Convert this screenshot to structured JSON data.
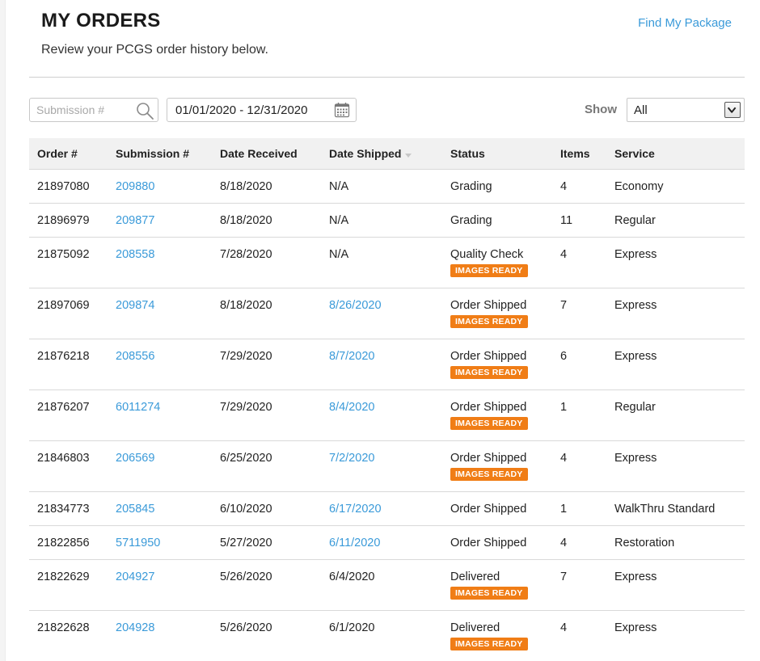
{
  "header": {
    "title": "MY ORDERS",
    "subtitle": "Review your PCGS order history below.",
    "find_package": "Find My Package"
  },
  "filters": {
    "search_placeholder": "Submission #",
    "date_range": "01/01/2020 - 12/31/2020",
    "show_label": "Show",
    "show_value": "All"
  },
  "table": {
    "columns": [
      "Order #",
      "Submission #",
      "Date Received",
      "Date Shipped",
      "Status",
      "Items",
      "Service"
    ],
    "badge_label": "IMAGES READY",
    "rows": [
      {
        "order": "21897080",
        "submission": "209880",
        "received": "8/18/2020",
        "shipped": "N/A",
        "status": "Grading",
        "items": "4",
        "service": "Economy"
      },
      {
        "order": "21896979",
        "submission": "209877",
        "received": "8/18/2020",
        "shipped": "N/A",
        "status": "Grading",
        "items": "11",
        "service": "Regular"
      },
      {
        "order": "21875092",
        "submission": "208558",
        "received": "7/28/2020",
        "shipped": "N/A",
        "status": "Quality Check",
        "items": "4",
        "service": "Express"
      },
      {
        "order": "21897069",
        "submission": "209874",
        "received": "8/18/2020",
        "shipped": "8/26/2020",
        "status": "Order Shipped",
        "items": "7",
        "service": "Express"
      },
      {
        "order": "21876218",
        "submission": "208556",
        "received": "7/29/2020",
        "shipped": "8/7/2020",
        "status": "Order Shipped",
        "items": "6",
        "service": "Express"
      },
      {
        "order": "21876207",
        "submission": "6011274",
        "received": "7/29/2020",
        "shipped": "8/4/2020",
        "status": "Order Shipped",
        "items": "1",
        "service": "Regular"
      },
      {
        "order": "21846803",
        "submission": "206569",
        "received": "6/25/2020",
        "shipped": "7/2/2020",
        "status": "Order Shipped",
        "items": "4",
        "service": "Express"
      },
      {
        "order": "21834773",
        "submission": "205845",
        "received": "6/10/2020",
        "shipped": "6/17/2020",
        "status": "Order Shipped",
        "items": "1",
        "service": "WalkThru Standard"
      },
      {
        "order": "21822856",
        "submission": "5711950",
        "received": "5/27/2020",
        "shipped": "6/11/2020",
        "status": "Order Shipped",
        "items": "4",
        "service": "Restoration"
      },
      {
        "order": "21822629",
        "submission": "204927",
        "received": "5/26/2020",
        "shipped": "6/4/2020",
        "status": "Delivered",
        "items": "7",
        "service": "Express"
      },
      {
        "order": "21822628",
        "submission": "204928",
        "received": "5/26/2020",
        "shipped": "6/1/2020",
        "status": "Delivered",
        "items": "4",
        "service": "Express"
      }
    ]
  },
  "colors": {
    "link": "#3a9ad9",
    "badge": "#f07d16",
    "header_bg": "#f1f1f1"
  }
}
